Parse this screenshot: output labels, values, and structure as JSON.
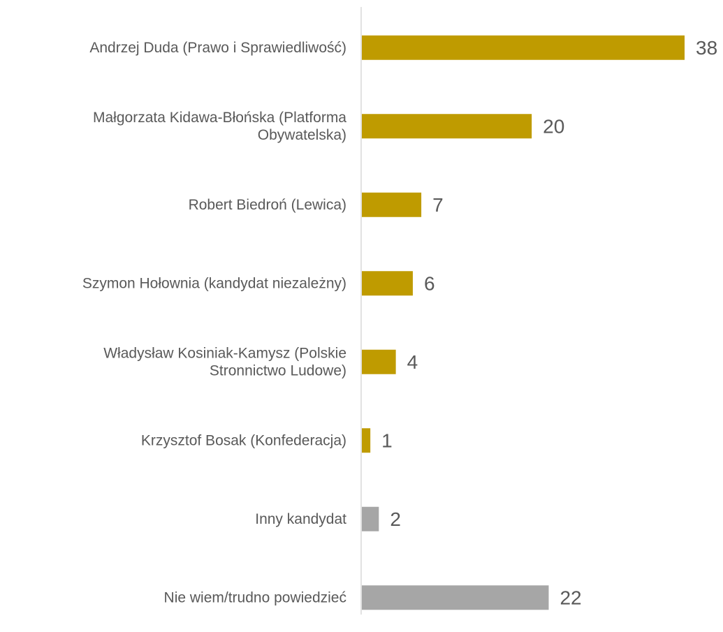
{
  "chart_data": {
    "type": "bar",
    "orientation": "horizontal",
    "categories": [
      [
        "Andrzej Duda (Prawo i Sprawiedliwość)"
      ],
      [
        "Małgorzata Kidawa-Błońska (Platforma",
        "Obywatelska)"
      ],
      [
        "Robert Biedroń (Lewica)"
      ],
      [
        "Szymon Hołownia (kandydat niezależny)"
      ],
      [
        "Władysław Kosiniak-Kamysz (Polskie",
        "Stronnictwo Ludowe)"
      ],
      [
        "Krzysztof Bosak (Konfederacja)"
      ],
      [
        "Inny kandydat"
      ],
      [
        "Nie wiem/trudno powiedzieć"
      ]
    ],
    "values": [
      38,
      20,
      7,
      6,
      4,
      1,
      2,
      22
    ],
    "bar_colors": [
      "#BF9B00",
      "#BF9B00",
      "#BF9B00",
      "#BF9B00",
      "#BF9B00",
      "#BF9B00",
      "#A6A6A6",
      "#A6A6A6"
    ],
    "data_labels": true,
    "xlim": [
      0,
      38
    ],
    "grid": false,
    "legend": "none"
  }
}
